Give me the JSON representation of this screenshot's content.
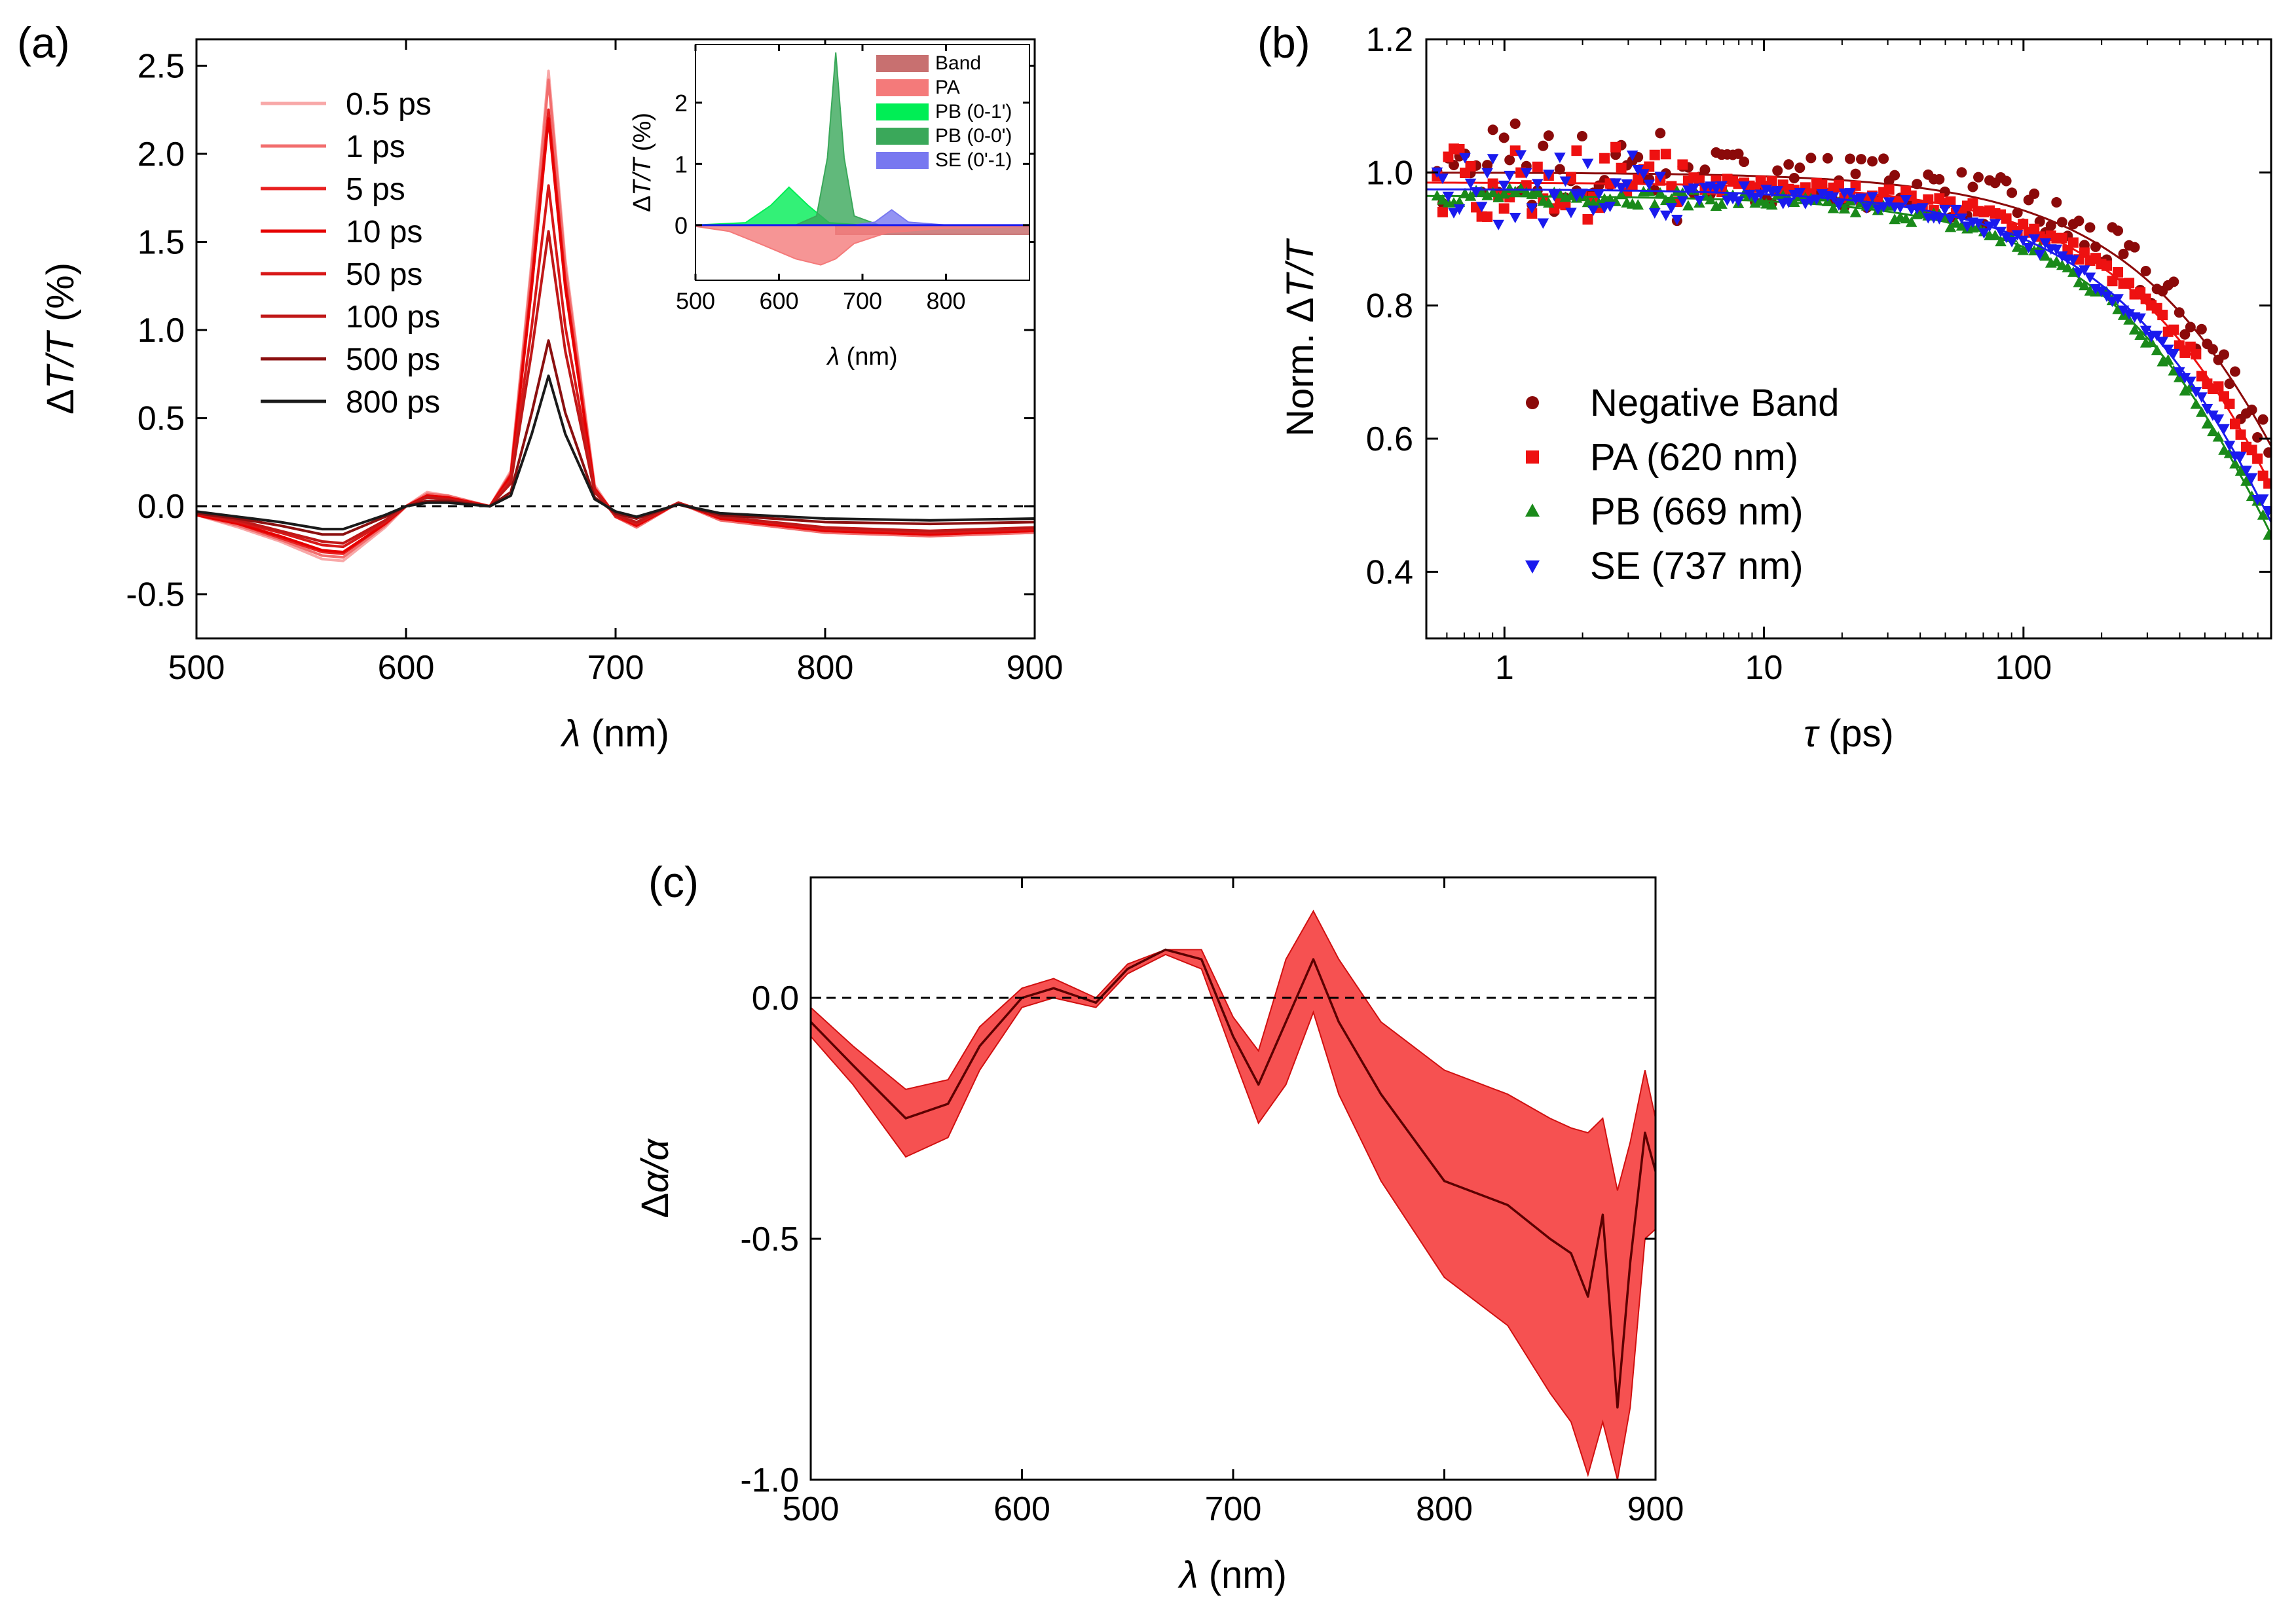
{
  "chart_data": [
    {
      "id": "a",
      "panel_label": "(a)",
      "type": "line",
      "xlabel": {
        "sym": "λ",
        "unit": " (nm)"
      },
      "ylabel": {
        "pre": "Δ",
        "sym": "T/T",
        "post": " (%)"
      },
      "xlim": [
        500,
        900
      ],
      "ylim": [
        -0.75,
        2.65
      ],
      "xticks": [
        "500",
        "600",
        "700",
        "800",
        "900"
      ],
      "yticks": [
        "-0.5",
        "0.0",
        "0.5",
        "1.0",
        "1.5",
        "2.0",
        "2.5"
      ],
      "zero_line": true,
      "x": [
        500,
        520,
        540,
        560,
        570,
        590,
        600,
        610,
        620,
        640,
        650,
        660,
        668,
        676,
        690,
        700,
        710,
        730,
        750,
        800,
        850,
        900
      ],
      "series": [
        {
          "name": "0.5 ps",
          "color": "#f8a8a8",
          "values": [
            -0.05,
            -0.12,
            -0.2,
            -0.3,
            -0.31,
            -0.12,
            0.0,
            0.08,
            0.06,
            0.0,
            0.2,
            1.4,
            2.47,
            1.4,
            0.12,
            -0.06,
            -0.12,
            0.02,
            -0.08,
            -0.15,
            -0.17,
            -0.15
          ]
        },
        {
          "name": "1 ps",
          "color": "#f26e6e",
          "values": [
            -0.05,
            -0.11,
            -0.19,
            -0.28,
            -0.29,
            -0.11,
            0.0,
            0.07,
            0.06,
            0.0,
            0.19,
            1.36,
            2.42,
            1.36,
            0.11,
            -0.06,
            -0.12,
            0.02,
            -0.08,
            -0.15,
            -0.17,
            -0.15
          ]
        },
        {
          "name": "5 ps",
          "color": "#e82020",
          "values": [
            -0.05,
            -0.1,
            -0.18,
            -0.26,
            -0.27,
            -0.1,
            0.0,
            0.06,
            0.05,
            0.0,
            0.18,
            1.28,
            2.25,
            1.28,
            0.1,
            -0.06,
            -0.11,
            0.02,
            -0.07,
            -0.14,
            -0.16,
            -0.14
          ]
        },
        {
          "name": "10 ps",
          "color": "#e60000",
          "values": [
            -0.05,
            -0.1,
            -0.17,
            -0.25,
            -0.26,
            -0.1,
            0.0,
            0.06,
            0.05,
            0.0,
            0.17,
            1.24,
            2.2,
            1.24,
            0.1,
            -0.05,
            -0.11,
            0.02,
            -0.07,
            -0.14,
            -0.16,
            -0.14
          ]
        },
        {
          "name": "50 ps",
          "color": "#d81818",
          "values": [
            -0.04,
            -0.09,
            -0.15,
            -0.22,
            -0.23,
            -0.09,
            0.0,
            0.05,
            0.04,
            0.0,
            0.15,
            1.02,
            1.82,
            1.02,
            0.09,
            -0.05,
            -0.1,
            0.02,
            -0.06,
            -0.13,
            -0.15,
            -0.13
          ]
        },
        {
          "name": "100 ps",
          "color": "#c01818",
          "values": [
            -0.04,
            -0.08,
            -0.14,
            -0.2,
            -0.21,
            -0.08,
            0.0,
            0.05,
            0.04,
            0.0,
            0.13,
            0.88,
            1.56,
            0.88,
            0.08,
            -0.05,
            -0.09,
            0.02,
            -0.06,
            -0.12,
            -0.14,
            -0.12
          ]
        },
        {
          "name": "500 ps",
          "color": "#8b1010",
          "values": [
            -0.04,
            -0.07,
            -0.11,
            -0.16,
            -0.16,
            -0.06,
            0.0,
            0.03,
            0.03,
            0.0,
            0.08,
            0.53,
            0.94,
            0.53,
            0.05,
            -0.04,
            -0.07,
            0.01,
            -0.05,
            -0.09,
            -0.1,
            -0.09
          ]
        },
        {
          "name": "800 ps",
          "color": "#1a1a1a",
          "values": [
            -0.03,
            -0.06,
            -0.09,
            -0.13,
            -0.13,
            -0.05,
            0.0,
            0.02,
            0.02,
            0.0,
            0.06,
            0.41,
            0.74,
            0.41,
            0.04,
            -0.03,
            -0.06,
            0.01,
            -0.04,
            -0.07,
            -0.08,
            -0.07
          ]
        }
      ],
      "inset": {
        "type": "area",
        "xlabel": {
          "sym": "λ",
          "unit": " (nm)"
        },
        "ylabel": {
          "pre": "Δ",
          "sym": "T/T",
          "post": " (%)"
        },
        "xlim": [
          500,
          900
        ],
        "ylim": [
          -0.9,
          2.95
        ],
        "xticks": [
          "500",
          "600",
          "700",
          "800"
        ],
        "yticks": [
          "0",
          "1",
          "2"
        ],
        "legend": [
          {
            "name": "Band",
            "color": "#c87070"
          },
          {
            "name": "PA",
            "color": "#f47a7a"
          },
          {
            "name": "PB (0-1')",
            "color": "#00ee55"
          },
          {
            "name": "PB (0-0')",
            "color": "#3aa85a"
          },
          {
            "name": "SE (0'-1)",
            "color": "#7878f0"
          }
        ],
        "series": [
          {
            "name": "Band",
            "x": [
              668,
              900
            ],
            "values": [
              -0.15,
              -0.15
            ]
          },
          {
            "name": "PA",
            "x": [
              500,
              540,
              580,
              620,
              650,
              668,
              690,
              730,
              800,
              900
            ],
            "values": [
              -0.02,
              -0.1,
              -0.32,
              -0.55,
              -0.65,
              -0.55,
              -0.3,
              -0.12,
              -0.05,
              -0.02
            ]
          },
          {
            "name": "PB (0-1')",
            "x": [
              500,
              560,
              590,
              612,
              635,
              660,
              700
            ],
            "values": [
              0.0,
              0.04,
              0.32,
              0.62,
              0.32,
              0.04,
              0.0
            ]
          },
          {
            "name": "PB (0-0')",
            "x": [
              620,
              645,
              658,
              668,
              678,
              690,
              720
            ],
            "values": [
              0.0,
              0.15,
              1.1,
              2.82,
              1.1,
              0.15,
              0.0
            ]
          },
          {
            "name": "SE (0'-1)",
            "x": [
              690,
              715,
              735,
              755,
              800,
              900
            ],
            "values": [
              0.0,
              0.05,
              0.25,
              0.05,
              0.0,
              0.0
            ]
          }
        ]
      }
    },
    {
      "id": "b",
      "panel_label": "(b)",
      "type": "scatter",
      "xscale": "log",
      "xlabel": {
        "sym": "τ",
        "unit": " (ps)"
      },
      "ylabel": {
        "pre": "Norm. Δ",
        "sym": "T/T",
        "post": ""
      },
      "xlim": [
        0.5,
        900
      ],
      "ylim": [
        0.3,
        1.2
      ],
      "xticks": [
        "1",
        "10",
        "100"
      ],
      "yticks": [
        "0.4",
        "0.6",
        "0.8",
        "1.0",
        "1.2"
      ],
      "legend_position": "bottom-left",
      "series": [
        {
          "name": "Negative Band",
          "marker": "circle",
          "color": "#8b0a0a",
          "fit_tau": 1700,
          "fit_amp": 1.0
        },
        {
          "name": "PA (620 nm)",
          "marker": "square",
          "color": "#ee1111",
          "fit_tau": 1450,
          "fit_amp": 0.985
        },
        {
          "name": "PB (669 nm)",
          "marker": "triangle-up",
          "color": "#1a8a1a",
          "fit_tau": 1200,
          "fit_amp": 0.965
        },
        {
          "name": "SE (737 nm)",
          "marker": "triangle-down",
          "color": "#1a1aee",
          "fit_tau": 1250,
          "fit_amp": 0.975
        }
      ]
    },
    {
      "id": "c",
      "panel_label": "(c)",
      "type": "line",
      "xlabel": {
        "sym": "λ",
        "unit": " (nm)"
      },
      "ylabel": {
        "pre": "Δ",
        "sym": "α/α",
        "post": ""
      },
      "xlim": [
        500,
        900
      ],
      "ylim": [
        -1.0,
        0.25
      ],
      "xticks": [
        "500",
        "600",
        "700",
        "800",
        "900"
      ],
      "yticks": [
        "-1.0",
        "-0.5",
        "0.0"
      ],
      "zero_line": true,
      "x": [
        500,
        520,
        545,
        565,
        580,
        600,
        615,
        635,
        650,
        668,
        685,
        700,
        712,
        725,
        738,
        750,
        770,
        800,
        830,
        850,
        860,
        868,
        875,
        882,
        888,
        895,
        900
      ],
      "mean": [
        -0.05,
        -0.14,
        -0.25,
        -0.22,
        -0.1,
        0.0,
        0.02,
        -0.01,
        0.06,
        0.1,
        0.08,
        -0.08,
        -0.18,
        -0.05,
        0.08,
        -0.05,
        -0.2,
        -0.38,
        -0.43,
        -0.5,
        -0.53,
        -0.62,
        -0.45,
        -0.85,
        -0.55,
        -0.28,
        -0.36
      ],
      "upper": [
        -0.02,
        -0.1,
        -0.19,
        -0.17,
        -0.06,
        0.02,
        0.04,
        0.0,
        0.07,
        0.1,
        0.1,
        -0.04,
        -0.11,
        0.08,
        0.18,
        0.08,
        -0.05,
        -0.15,
        -0.2,
        -0.25,
        -0.27,
        -0.28,
        -0.25,
        -0.4,
        -0.3,
        -0.15,
        -0.25
      ],
      "lower": [
        -0.08,
        -0.18,
        -0.33,
        -0.29,
        -0.15,
        -0.02,
        0.0,
        -0.02,
        0.05,
        0.09,
        0.06,
        -0.12,
        -0.26,
        -0.18,
        -0.03,
        -0.2,
        -0.38,
        -0.58,
        -0.68,
        -0.82,
        -0.88,
        -0.99,
        -0.88,
        -1.0,
        -0.85,
        -0.5,
        -0.48
      ],
      "band_color": "#f54848",
      "line_color": "#5c0000"
    }
  ]
}
